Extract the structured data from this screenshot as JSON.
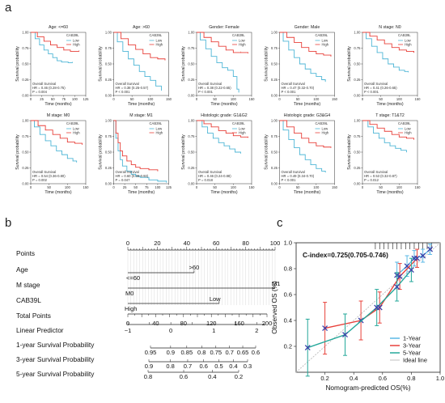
{
  "panel_labels": {
    "a": "a",
    "b": "b",
    "c": "c"
  },
  "km": {
    "ylabel": "Survival probability",
    "xlabel": "Time (months)",
    "legend_title": "CAB39L",
    "legend": [
      "Low",
      "High"
    ],
    "colors": {
      "low": "#4fb6d6",
      "high": "#e8403a"
    },
    "plots": [
      {
        "title": "Age: <=60",
        "xmax": 125,
        "ticks": [
          0,
          25,
          50,
          75,
          100,
          125
        ],
        "stats": [
          "Overall Survival",
          "HR = 0.46 (0.28-0.75)",
          "P = 0.004"
        ],
        "high": [
          [
            0,
            1
          ],
          [
            15,
            0.93
          ],
          [
            30,
            0.86
          ],
          [
            45,
            0.8
          ],
          [
            60,
            0.76
          ],
          [
            75,
            0.72
          ],
          [
            90,
            0.7
          ],
          [
            110,
            0.7
          ]
        ],
        "low": [
          [
            0,
            1
          ],
          [
            10,
            0.9
          ],
          [
            20,
            0.8
          ],
          [
            30,
            0.72
          ],
          [
            40,
            0.66
          ],
          [
            50,
            0.6
          ],
          [
            60,
            0.55
          ],
          [
            70,
            0.53
          ],
          [
            85,
            0.52
          ],
          [
            95,
            0.52
          ]
        ]
      },
      {
        "title": "Age: >60",
        "xmax": 150,
        "ticks": [
          0,
          50,
          100,
          150
        ],
        "stats": [
          "Overall Survival",
          "HR = 0.38 (0.25-0.57)",
          "P < 0.001"
        ],
        "high": [
          [
            0,
            1
          ],
          [
            20,
            0.9
          ],
          [
            40,
            0.8
          ],
          [
            60,
            0.73
          ],
          [
            80,
            0.66
          ],
          [
            100,
            0.6
          ],
          [
            120,
            0.58
          ],
          [
            140,
            0.56
          ]
        ],
        "low": [
          [
            0,
            1
          ],
          [
            10,
            0.85
          ],
          [
            25,
            0.7
          ],
          [
            40,
            0.58
          ],
          [
            55,
            0.48
          ],
          [
            70,
            0.38
          ],
          [
            85,
            0.3
          ],
          [
            100,
            0.24
          ],
          [
            115,
            0.15
          ],
          [
            130,
            0.08
          ]
        ]
      },
      {
        "title": "Gender: Female",
        "xmax": 150,
        "ticks": [
          0,
          50,
          100,
          150
        ],
        "stats": [
          "Overall Survival",
          "HR = 0.38 (0.22-0.65)",
          "P < 0.001"
        ],
        "high": [
          [
            0,
            1
          ],
          [
            20,
            0.92
          ],
          [
            40,
            0.85
          ],
          [
            60,
            0.78
          ],
          [
            80,
            0.72
          ],
          [
            100,
            0.68
          ],
          [
            120,
            0.68
          ],
          [
            140,
            0.67
          ]
        ],
        "low": [
          [
            0,
            1
          ],
          [
            10,
            0.88
          ],
          [
            25,
            0.74
          ],
          [
            40,
            0.62
          ],
          [
            55,
            0.52
          ],
          [
            70,
            0.44
          ],
          [
            85,
            0.4
          ],
          [
            100,
            0.3
          ],
          [
            110,
            0.1
          ],
          [
            115,
            0.05
          ]
        ]
      },
      {
        "title": "Gender: Male",
        "xmax": 150,
        "ticks": [
          0,
          50,
          100,
          150
        ],
        "stats": [
          "Overall Survival",
          "HR = 0.47 (0.32-0.70)",
          "P < 0.001"
        ],
        "high": [
          [
            0,
            1
          ],
          [
            20,
            0.92
          ],
          [
            40,
            0.84
          ],
          [
            60,
            0.76
          ],
          [
            80,
            0.7
          ],
          [
            100,
            0.66
          ],
          [
            120,
            0.64
          ],
          [
            140,
            0.62
          ]
        ],
        "low": [
          [
            0,
            1
          ],
          [
            10,
            0.86
          ],
          [
            25,
            0.72
          ],
          [
            40,
            0.6
          ],
          [
            55,
            0.5
          ],
          [
            70,
            0.42
          ],
          [
            85,
            0.35
          ],
          [
            100,
            0.3
          ],
          [
            115,
            0.25
          ],
          [
            125,
            0.22
          ]
        ]
      },
      {
        "title": "N stage: N0",
        "xmax": 150,
        "ticks": [
          0,
          50,
          100,
          150
        ],
        "stats": [
          "Overall Survival",
          "HR = 0.41 (0.26-0.65)",
          "P < 0.001"
        ],
        "high": [
          [
            0,
            1
          ],
          [
            20,
            0.94
          ],
          [
            40,
            0.88
          ],
          [
            60,
            0.82
          ],
          [
            80,
            0.76
          ],
          [
            100,
            0.72
          ],
          [
            120,
            0.7
          ],
          [
            140,
            0.68
          ]
        ],
        "low": [
          [
            0,
            1
          ],
          [
            10,
            0.9
          ],
          [
            25,
            0.78
          ],
          [
            40,
            0.68
          ],
          [
            55,
            0.58
          ],
          [
            70,
            0.5
          ],
          [
            85,
            0.45
          ],
          [
            100,
            0.4
          ],
          [
            115,
            0.38
          ],
          [
            125,
            0.37
          ]
        ]
      },
      {
        "title": "M stage: M0",
        "xmax": 150,
        "ticks": [
          0,
          50,
          100,
          150
        ],
        "stats": [
          "Overall Survival",
          "HR = 0.54 (0.36-0.80)",
          "P = 0.002"
        ],
        "high": [
          [
            0,
            1
          ],
          [
            20,
            0.92
          ],
          [
            40,
            0.85
          ],
          [
            60,
            0.78
          ],
          [
            80,
            0.72
          ],
          [
            100,
            0.66
          ],
          [
            120,
            0.64
          ],
          [
            140,
            0.62
          ]
        ],
        "low": [
          [
            0,
            1
          ],
          [
            10,
            0.9
          ],
          [
            25,
            0.78
          ],
          [
            40,
            0.68
          ],
          [
            55,
            0.6
          ],
          [
            70,
            0.52
          ],
          [
            85,
            0.46
          ],
          [
            100,
            0.4
          ],
          [
            115,
            0.36
          ],
          [
            125,
            0.34
          ]
        ]
      },
      {
        "title": "M stage: M1",
        "xmax": 125,
        "ticks": [
          0,
          25,
          50,
          75,
          100,
          125
        ],
        "stats": [
          "Overall Survival",
          "HR = 0.60 (0.38-0.93)",
          "P = 0.047"
        ],
        "high": [
          [
            0,
            1
          ],
          [
            5,
            0.8
          ],
          [
            10,
            0.65
          ],
          [
            15,
            0.52
          ],
          [
            20,
            0.44
          ],
          [
            30,
            0.36
          ],
          [
            40,
            0.3
          ],
          [
            50,
            0.26
          ],
          [
            60,
            0.24
          ],
          [
            80,
            0.22
          ],
          [
            100,
            0.2
          ]
        ],
        "low": [
          [
            0,
            1
          ],
          [
            5,
            0.72
          ],
          [
            10,
            0.52
          ],
          [
            15,
            0.38
          ],
          [
            20,
            0.28
          ],
          [
            30,
            0.2
          ],
          [
            40,
            0.15
          ],
          [
            50,
            0.12
          ],
          [
            60,
            0.1
          ],
          [
            80,
            0.06
          ],
          [
            100,
            0.04
          ],
          [
            120,
            0.02
          ]
        ]
      },
      {
        "title": "Histologic grade: G1&G2",
        "xmax": 150,
        "ticks": [
          0,
          50,
          100,
          150
        ],
        "stats": [
          "Overall Survival",
          "HR = 0.46 (0.24-0.88)",
          "P = 0.018"
        ],
        "high": [
          [
            0,
            1
          ],
          [
            20,
            0.95
          ],
          [
            40,
            0.9
          ],
          [
            60,
            0.84
          ],
          [
            80,
            0.8
          ],
          [
            100,
            0.76
          ],
          [
            120,
            0.74
          ],
          [
            140,
            0.73
          ]
        ],
        "low": [
          [
            0,
            1
          ],
          [
            15,
            0.9
          ],
          [
            30,
            0.8
          ],
          [
            45,
            0.72
          ],
          [
            60,
            0.65
          ],
          [
            75,
            0.6
          ],
          [
            90,
            0.55
          ],
          [
            105,
            0.5
          ],
          [
            120,
            0.48
          ]
        ]
      },
      {
        "title": "Histologic grade: G3&G4",
        "xmax": 150,
        "ticks": [
          0,
          50,
          100,
          150
        ],
        "stats": [
          "Overall Survival",
          "HR = 0.49 (0.34-0.70)",
          "P < 0.001"
        ],
        "high": [
          [
            0,
            1
          ],
          [
            20,
            0.9
          ],
          [
            40,
            0.8
          ],
          [
            60,
            0.72
          ],
          [
            80,
            0.65
          ],
          [
            100,
            0.6
          ],
          [
            120,
            0.58
          ],
          [
            140,
            0.57
          ]
        ],
        "low": [
          [
            0,
            1
          ],
          [
            10,
            0.85
          ],
          [
            25,
            0.7
          ],
          [
            40,
            0.57
          ],
          [
            55,
            0.46
          ],
          [
            70,
            0.38
          ],
          [
            85,
            0.3
          ],
          [
            100,
            0.24
          ],
          [
            115,
            0.2
          ],
          [
            125,
            0.18
          ]
        ]
      },
      {
        "title": "T stage: T1&T2",
        "xmax": 150,
        "ticks": [
          0,
          50,
          100,
          150
        ],
        "stats": [
          "Overall Survival",
          "HR = 0.53 (0.32-0.87)",
          "P = 0.012"
        ],
        "high": [
          [
            0,
            1
          ],
          [
            20,
            0.94
          ],
          [
            40,
            0.88
          ],
          [
            60,
            0.83
          ],
          [
            80,
            0.78
          ],
          [
            100,
            0.74
          ],
          [
            120,
            0.72
          ],
          [
            140,
            0.7
          ]
        ],
        "low": [
          [
            0,
            1
          ],
          [
            15,
            0.9
          ],
          [
            30,
            0.8
          ],
          [
            45,
            0.72
          ],
          [
            60,
            0.65
          ],
          [
            75,
            0.6
          ],
          [
            90,
            0.56
          ],
          [
            105,
            0.53
          ],
          [
            120,
            0.5
          ]
        ]
      }
    ]
  },
  "nomogram": {
    "rows": [
      "Points",
      "Age",
      "M stage",
      "CAB39L",
      "Total Points",
      "Linear Predictor",
      "1-year Survival Probability",
      "3-year Survival Probability",
      "5-year Survival Probability"
    ],
    "points_ticks": [
      0,
      10,
      20,
      30,
      40,
      50,
      60,
      70,
      80,
      90,
      100
    ],
    "points_labels": [
      "0",
      "20",
      "40",
      "60",
      "80",
      "100"
    ],
    "age": {
      "labels": [
        ">60",
        "<=60"
      ],
      "points": 45
    },
    "mstage": {
      "labels": [
        "M1",
        "M0"
      ],
      "points": 100
    },
    "cab39l": {
      "labels": [
        "Low",
        "High"
      ],
      "points": 62
    },
    "total_ticks": [
      0,
      20,
      40,
      60,
      80,
      100,
      120,
      140,
      160,
      180,
      200
    ],
    "total_labels": [
      "0",
      "40",
      "80",
      "120",
      "160",
      "200"
    ],
    "lp_ticks": [
      -1,
      0,
      1,
      2
    ],
    "lp_labels": [
      "−1",
      "0",
      "1",
      "2"
    ],
    "surv1": [
      "0.95",
      "0.9",
      "0.85",
      "0.8",
      "0.75",
      "0.7",
      "0.65",
      "0.6"
    ],
    "surv3": [
      "0.9",
      "0.8",
      "0.7",
      "0.6",
      "0.5",
      "0.4",
      "0.3"
    ],
    "surv5": [
      "0.8",
      "0.6",
      "0.4",
      "0.2"
    ]
  },
  "chart_data": {
    "type": "line",
    "title": "C-index=0.725(0.705-0.746)",
    "xlabel": "Nomogram-predicted OS(%)",
    "ylabel": "Observed OS (%)",
    "xlim": [
      0,
      1.0
    ],
    "ylim": [
      0,
      1.0
    ],
    "xticks": [
      "0.2",
      "0.4",
      "0.6",
      "0.8",
      "1.0"
    ],
    "yticks": [
      "0.2",
      "0.4",
      "0.6",
      "0.8",
      "1.0"
    ],
    "series": [
      {
        "name": "1-Year",
        "color": "#5ab8e6",
        "x": [
          0.7,
          0.77,
          0.82,
          0.88,
          0.93
        ],
        "y": [
          0.75,
          0.82,
          0.88,
          0.9,
          0.95
        ],
        "err": [
          0.1,
          0.08,
          0.06,
          0.05,
          0.04
        ]
      },
      {
        "name": "3-Year",
        "color": "#e8403a",
        "x": [
          0.2,
          0.45,
          0.58,
          0.72,
          0.84
        ],
        "y": [
          0.34,
          0.4,
          0.5,
          0.74,
          0.88
        ],
        "err": [
          0.2,
          0.15,
          0.12,
          0.1,
          0.07
        ]
      },
      {
        "name": "5-Year",
        "color": "#24a89a",
        "x": [
          0.08,
          0.34,
          0.56,
          0.7,
          0.8
        ],
        "y": [
          0.19,
          0.29,
          0.5,
          0.66,
          0.79
        ],
        "err": [
          0.22,
          0.16,
          0.14,
          0.11,
          0.09
        ]
      },
      {
        "name": "Ideal line",
        "color": "#bbbbbb",
        "x": [
          0,
          1
        ],
        "y": [
          0,
          1
        ]
      }
    ]
  }
}
